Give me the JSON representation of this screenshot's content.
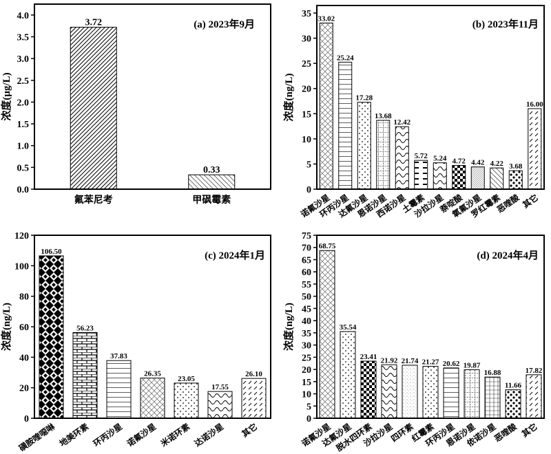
{
  "chart_data": [
    {
      "type": "bar",
      "title": "(a) 2023年9月",
      "ylabel": "浓度(μg/L)",
      "ylim": [
        0,
        4.25
      ],
      "yticks": [
        "0.0",
        "0.5",
        "1.0",
        "1.5",
        "2.0",
        "2.5",
        "3.0",
        "3.5",
        "4.0"
      ],
      "categories": [
        "氟苯尼考",
        "甲砜霉素"
      ],
      "values": [
        3.72,
        0.33
      ],
      "value_labels": [
        "3.72",
        "0.33"
      ]
    },
    {
      "type": "bar",
      "title": "(b) 2023年11月",
      "ylabel": "浓度(ng/L)",
      "ylim": [
        0,
        36.5
      ],
      "yticks": [
        "0",
        "5",
        "10",
        "15",
        "20",
        "25",
        "30",
        "35"
      ],
      "categories": [
        "诺氟沙星",
        "环丙沙星",
        "达氟沙星",
        "恩诺沙星",
        "西诺沙星",
        "土霉素",
        "沙拉沙星",
        "萘啶酸",
        "氧氟沙星",
        "罗红霉素",
        "恶喹酸",
        "其它"
      ],
      "values": [
        33.02,
        25.24,
        17.28,
        13.68,
        12.42,
        5.72,
        5.24,
        4.72,
        4.42,
        4.22,
        3.68,
        16.0
      ],
      "value_labels": [
        "33.02",
        "25.24",
        "17.28",
        "13.68",
        "12.42",
        "5.72",
        "5.24",
        "4.72",
        "4.42",
        "4.22",
        "3.68",
        "16.00"
      ]
    },
    {
      "type": "bar",
      "title": "(c) 2024年1月",
      "ylabel": "浓度(ng/L)",
      "ylim": [
        0,
        120
      ],
      "yticks": [
        "0",
        "20",
        "40",
        "60",
        "80",
        "100",
        "120"
      ],
      "categories": [
        "磺胺喹噁啉",
        "地美环素",
        "环丙沙星",
        "诺氟沙星",
        "米诺环素",
        "达诺沙星",
        "其它"
      ],
      "values": [
        106.5,
        56.23,
        37.83,
        26.35,
        23.05,
        17.55,
        26.1
      ],
      "value_labels": [
        "106.50",
        "56.23",
        "37.83",
        "26.35",
        "23.05",
        "17.55",
        "26.10"
      ]
    },
    {
      "type": "bar",
      "title": "(d) 2024年4月",
      "ylabel": "浓度(ng/L)",
      "ylim": [
        0,
        75
      ],
      "yticks": [
        "0",
        "5",
        "10",
        "15",
        "20",
        "25",
        "30",
        "35",
        "40",
        "45",
        "50",
        "55",
        "60",
        "65",
        "70",
        "75"
      ],
      "categories": [
        "诺氟沙星",
        "达氟沙星",
        "脱水四环素",
        "沙拉沙星",
        "四环素",
        "红霉素",
        "环丙沙星",
        "恩诺沙星",
        "依诺沙星",
        "恶喹酸",
        "其它"
      ],
      "values": [
        68.75,
        35.54,
        23.41,
        21.92,
        21.74,
        21.27,
        20.62,
        19.87,
        16.88,
        11.66,
        17.82
      ],
      "value_labels": [
        "68.75",
        "35.54",
        "23.41",
        "21.92",
        "21.74",
        "21.27",
        "20.62",
        "19.87",
        "16.88",
        "11.66",
        "17.82"
      ]
    }
  ]
}
